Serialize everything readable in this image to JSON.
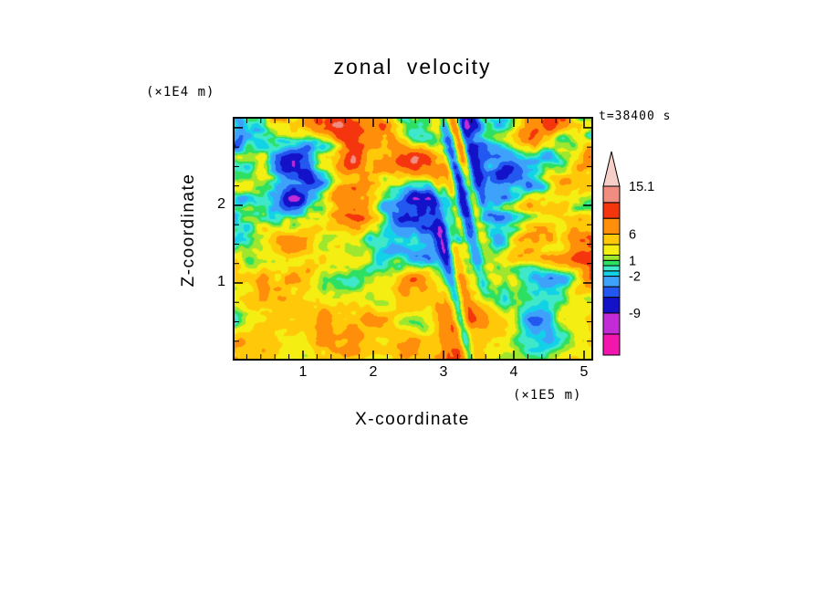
{
  "page": {
    "background": "#ffffff"
  },
  "chart_data": {
    "type": "heatmap",
    "title": "zonal velocity",
    "xlabel": "X-coordinate",
    "ylabel": "Z-coordinate",
    "x_unit_label": "(×1E5 m)",
    "y_unit_label": "(×1E4 m)",
    "time_label": "t=38400 s",
    "x_ticks": [
      1,
      2,
      3,
      4,
      5
    ],
    "y_ticks": [
      1,
      2
    ],
    "x_range": [
      0,
      5.13
    ],
    "y_range": [
      0,
      3.14
    ],
    "grid": false,
    "legend_position": "right-colorbar",
    "colorbar": {
      "orientation": "vertical",
      "arrow": "top",
      "levels": [
        -17,
        -13,
        -9,
        -6,
        -4,
        -2,
        -1,
        0,
        1,
        2,
        4,
        6,
        9,
        12,
        15.1
      ],
      "colors": [
        "#f216ae",
        "#c22cd6",
        "#1412c8",
        "#2257f0",
        "#3fa2fa",
        "#12d2e8",
        "#3fe8c8",
        "#2ee062",
        "#9fe62e",
        "#f4ee12",
        "#ffc90a",
        "#ff8e0a",
        "#f4350e",
        "#f08c80"
      ],
      "over_color": "#f6cfc8",
      "labeled_levels": [
        {
          "value": 15.1,
          "text": "15.1"
        },
        {
          "value": 6,
          "text": "6"
        },
        {
          "value": 1,
          "text": "1"
        },
        {
          "value": -2,
          "text": "-2"
        },
        {
          "value": -9,
          "text": "-9"
        }
      ]
    },
    "field": {
      "description": "Turbulent filled-contour zonal velocity field (m/s), horizontally elongated eddies; calm yellow/green lower layer, strong orange/blue eddies aloft, fine-scale vertical disturbance near x=3.2E5 m. Approximated procedurally from the colorbar levels.",
      "value_min": -17,
      "value_max": 15.1,
      "mean_bias": 1.6,
      "amplitude": 8.4,
      "disturbance_x": 3.22,
      "seed": 1337
    }
  }
}
